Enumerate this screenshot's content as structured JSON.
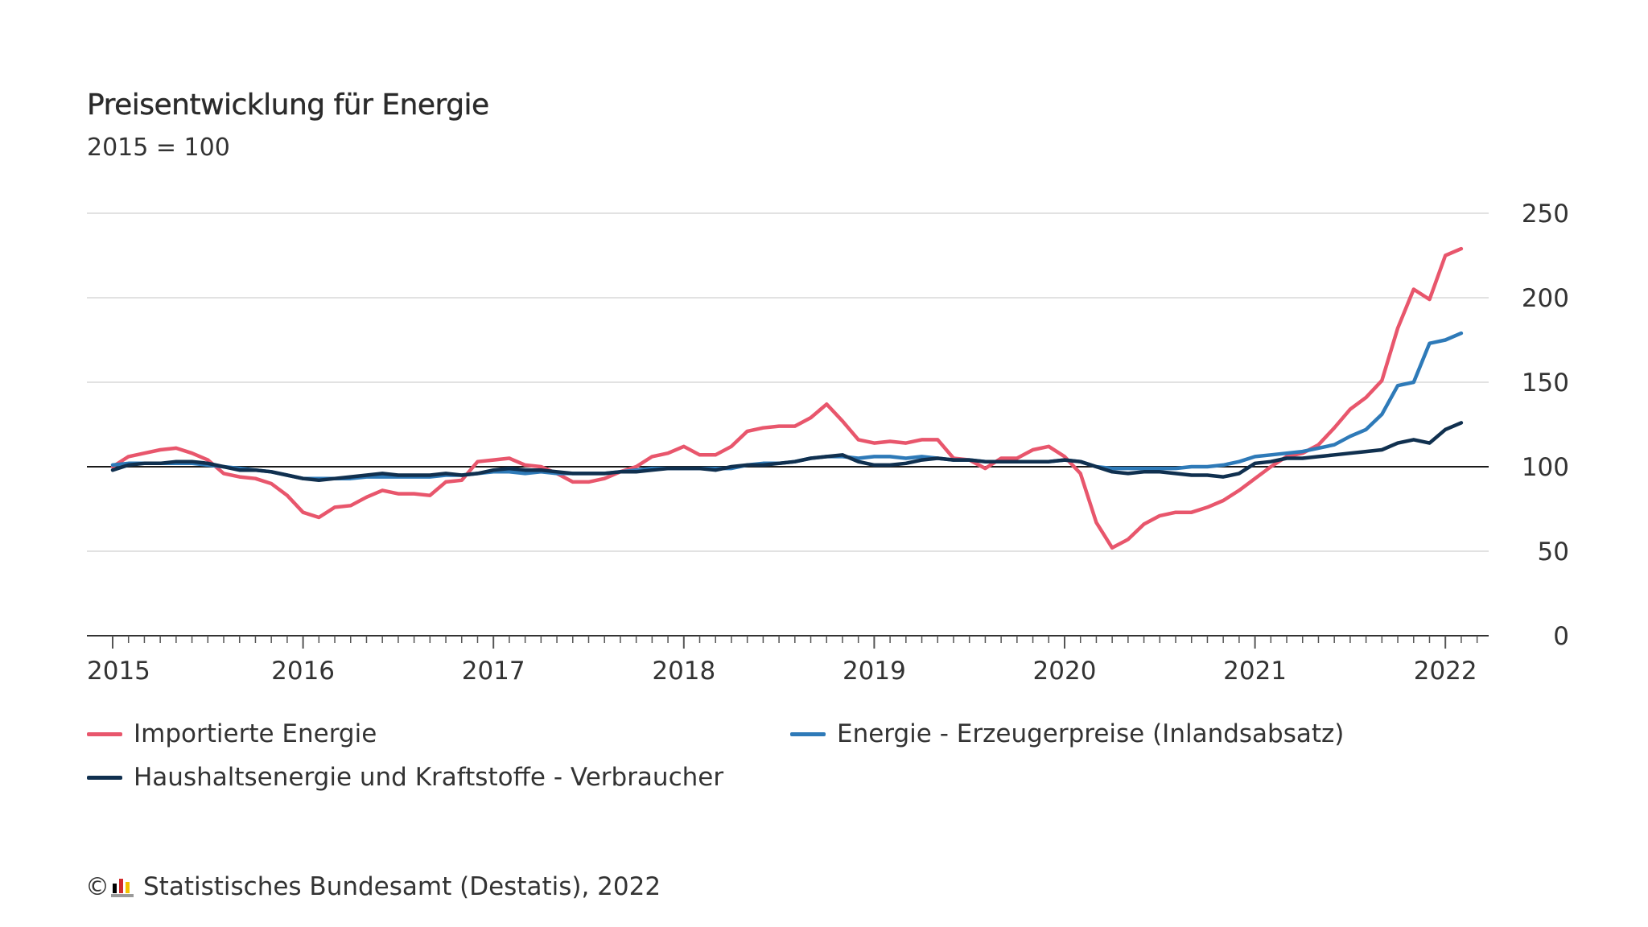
{
  "header": {
    "title": "Preisentwicklung für Energie",
    "subtitle": "2015 = 100"
  },
  "footer": {
    "copyright_symbol": "©",
    "logo_icon": "destatis-logo-icon",
    "source": "Statistisches Bundesamt (Destatis), 2022"
  },
  "chart_data": {
    "type": "line",
    "title": "Preisentwicklung für Energie",
    "subtitle": "2015 = 100",
    "xlabel": "",
    "ylabel": "",
    "x_range": [
      "2015-01",
      "2022-02"
    ],
    "x_ticks": [
      "2015",
      "2016",
      "2017",
      "2018",
      "2019",
      "2020",
      "2021",
      "2022"
    ],
    "ylim": [
      0,
      250
    ],
    "y_ticks": [
      0,
      50,
      100,
      150,
      200,
      250
    ],
    "y_axis_side": "right",
    "reference_line": 100,
    "grid": true,
    "legend_position": "bottom",
    "series": [
      {
        "name": "Importierte Energie",
        "color": "#e8566c",
        "values": [
          100,
          106,
          108,
          110,
          111,
          108,
          104,
          96,
          94,
          93,
          90,
          83,
          73,
          70,
          76,
          77,
          82,
          86,
          84,
          84,
          83,
          91,
          92,
          103,
          104,
          105,
          101,
          100,
          96,
          91,
          91,
          93,
          97,
          100,
          106,
          108,
          112,
          107,
          107,
          112,
          121,
          123,
          124,
          124,
          129,
          137,
          127,
          116,
          114,
          115,
          114,
          116,
          116,
          105,
          104,
          99,
          105,
          105,
          110,
          112,
          106,
          96,
          67,
          52,
          57,
          66,
          71,
          73,
          73,
          76,
          80,
          86,
          93,
          100,
          106,
          108,
          113,
          123,
          134,
          141,
          151,
          182,
          205,
          199,
          225,
          229
        ]
      },
      {
        "name": "Energie - Erzeugerpreise (Inlandsabsatz)",
        "color": "#2e7ab8",
        "values": [
          101,
          102,
          102,
          102,
          102,
          102,
          101,
          100,
          99,
          98,
          97,
          95,
          93,
          93,
          93,
          93,
          94,
          94,
          94,
          94,
          94,
          95,
          95,
          96,
          97,
          97,
          96,
          97,
          96,
          96,
          96,
          96,
          97,
          98,
          99,
          99,
          99,
          99,
          99,
          99,
          101,
          102,
          102,
          103,
          105,
          106,
          106,
          105,
          106,
          106,
          105,
          106,
          105,
          104,
          104,
          103,
          103,
          103,
          103,
          103,
          104,
          103,
          100,
          99,
          99,
          99,
          99,
          99,
          100,
          100,
          101,
          103,
          106,
          107,
          108,
          109,
          111,
          113,
          118,
          122,
          131,
          148,
          150,
          173,
          175,
          179
        ]
      },
      {
        "name": "Haushaltsenergie und Kraftstoffe - Verbraucher",
        "color": "#10304f",
        "values": [
          98,
          101,
          102,
          102,
          103,
          103,
          102,
          100,
          98,
          98,
          97,
          95,
          93,
          92,
          93,
          94,
          95,
          96,
          95,
          95,
          95,
          96,
          95,
          96,
          98,
          99,
          98,
          98,
          97,
          96,
          96,
          96,
          97,
          97,
          98,
          99,
          99,
          99,
          98,
          100,
          101,
          101,
          102,
          103,
          105,
          106,
          107,
          103,
          101,
          101,
          102,
          104,
          105,
          104,
          104,
          103,
          103,
          103,
          103,
          103,
          104,
          103,
          100,
          97,
          96,
          97,
          97,
          96,
          95,
          95,
          94,
          96,
          102,
          103,
          105,
          105,
          106,
          107,
          108,
          109,
          110,
          114,
          116,
          114,
          122,
          126
        ]
      }
    ]
  }
}
